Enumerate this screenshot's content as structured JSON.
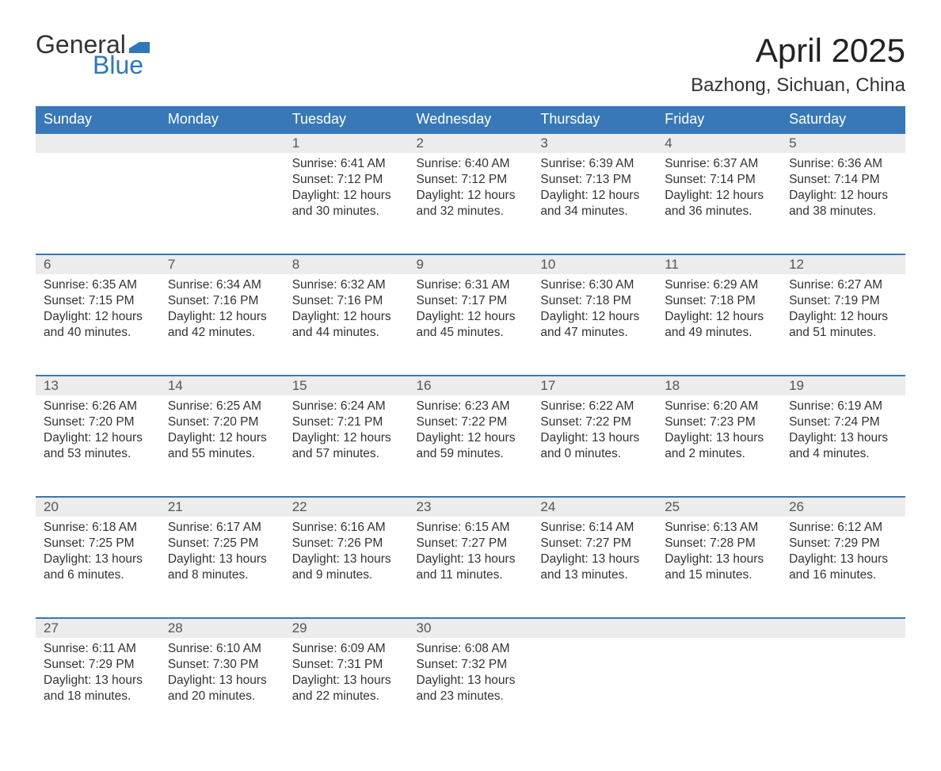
{
  "brand": {
    "part1": "General",
    "part2": "Blue",
    "flag_color": "#2f77bb"
  },
  "title": "April 2025",
  "location": "Bazhong, Sichuan, China",
  "colors": {
    "header_bg": "#3878b8",
    "header_text": "#ffffff",
    "daynum_bg": "#ececec",
    "rule": "#3878b8",
    "text": "#333333",
    "background": "#ffffff"
  },
  "weekdays": [
    "Sunday",
    "Monday",
    "Tuesday",
    "Wednesday",
    "Thursday",
    "Friday",
    "Saturday"
  ],
  "weeks": [
    [
      null,
      null,
      {
        "n": "1",
        "sr": "Sunrise: 6:41 AM",
        "ss": "Sunset: 7:12 PM",
        "d1": "Daylight: 12 hours",
        "d2": "and 30 minutes."
      },
      {
        "n": "2",
        "sr": "Sunrise: 6:40 AM",
        "ss": "Sunset: 7:12 PM",
        "d1": "Daylight: 12 hours",
        "d2": "and 32 minutes."
      },
      {
        "n": "3",
        "sr": "Sunrise: 6:39 AM",
        "ss": "Sunset: 7:13 PM",
        "d1": "Daylight: 12 hours",
        "d2": "and 34 minutes."
      },
      {
        "n": "4",
        "sr": "Sunrise: 6:37 AM",
        "ss": "Sunset: 7:14 PM",
        "d1": "Daylight: 12 hours",
        "d2": "and 36 minutes."
      },
      {
        "n": "5",
        "sr": "Sunrise: 6:36 AM",
        "ss": "Sunset: 7:14 PM",
        "d1": "Daylight: 12 hours",
        "d2": "and 38 minutes."
      }
    ],
    [
      {
        "n": "6",
        "sr": "Sunrise: 6:35 AM",
        "ss": "Sunset: 7:15 PM",
        "d1": "Daylight: 12 hours",
        "d2": "and 40 minutes."
      },
      {
        "n": "7",
        "sr": "Sunrise: 6:34 AM",
        "ss": "Sunset: 7:16 PM",
        "d1": "Daylight: 12 hours",
        "d2": "and 42 minutes."
      },
      {
        "n": "8",
        "sr": "Sunrise: 6:32 AM",
        "ss": "Sunset: 7:16 PM",
        "d1": "Daylight: 12 hours",
        "d2": "and 44 minutes."
      },
      {
        "n": "9",
        "sr": "Sunrise: 6:31 AM",
        "ss": "Sunset: 7:17 PM",
        "d1": "Daylight: 12 hours",
        "d2": "and 45 minutes."
      },
      {
        "n": "10",
        "sr": "Sunrise: 6:30 AM",
        "ss": "Sunset: 7:18 PM",
        "d1": "Daylight: 12 hours",
        "d2": "and 47 minutes."
      },
      {
        "n": "11",
        "sr": "Sunrise: 6:29 AM",
        "ss": "Sunset: 7:18 PM",
        "d1": "Daylight: 12 hours",
        "d2": "and 49 minutes."
      },
      {
        "n": "12",
        "sr": "Sunrise: 6:27 AM",
        "ss": "Sunset: 7:19 PM",
        "d1": "Daylight: 12 hours",
        "d2": "and 51 minutes."
      }
    ],
    [
      {
        "n": "13",
        "sr": "Sunrise: 6:26 AM",
        "ss": "Sunset: 7:20 PM",
        "d1": "Daylight: 12 hours",
        "d2": "and 53 minutes."
      },
      {
        "n": "14",
        "sr": "Sunrise: 6:25 AM",
        "ss": "Sunset: 7:20 PM",
        "d1": "Daylight: 12 hours",
        "d2": "and 55 minutes."
      },
      {
        "n": "15",
        "sr": "Sunrise: 6:24 AM",
        "ss": "Sunset: 7:21 PM",
        "d1": "Daylight: 12 hours",
        "d2": "and 57 minutes."
      },
      {
        "n": "16",
        "sr": "Sunrise: 6:23 AM",
        "ss": "Sunset: 7:22 PM",
        "d1": "Daylight: 12 hours",
        "d2": "and 59 minutes."
      },
      {
        "n": "17",
        "sr": "Sunrise: 6:22 AM",
        "ss": "Sunset: 7:22 PM",
        "d1": "Daylight: 13 hours",
        "d2": "and 0 minutes."
      },
      {
        "n": "18",
        "sr": "Sunrise: 6:20 AM",
        "ss": "Sunset: 7:23 PM",
        "d1": "Daylight: 13 hours",
        "d2": "and 2 minutes."
      },
      {
        "n": "19",
        "sr": "Sunrise: 6:19 AM",
        "ss": "Sunset: 7:24 PM",
        "d1": "Daylight: 13 hours",
        "d2": "and 4 minutes."
      }
    ],
    [
      {
        "n": "20",
        "sr": "Sunrise: 6:18 AM",
        "ss": "Sunset: 7:25 PM",
        "d1": "Daylight: 13 hours",
        "d2": "and 6 minutes."
      },
      {
        "n": "21",
        "sr": "Sunrise: 6:17 AM",
        "ss": "Sunset: 7:25 PM",
        "d1": "Daylight: 13 hours",
        "d2": "and 8 minutes."
      },
      {
        "n": "22",
        "sr": "Sunrise: 6:16 AM",
        "ss": "Sunset: 7:26 PM",
        "d1": "Daylight: 13 hours",
        "d2": "and 9 minutes."
      },
      {
        "n": "23",
        "sr": "Sunrise: 6:15 AM",
        "ss": "Sunset: 7:27 PM",
        "d1": "Daylight: 13 hours",
        "d2": "and 11 minutes."
      },
      {
        "n": "24",
        "sr": "Sunrise: 6:14 AM",
        "ss": "Sunset: 7:27 PM",
        "d1": "Daylight: 13 hours",
        "d2": "and 13 minutes."
      },
      {
        "n": "25",
        "sr": "Sunrise: 6:13 AM",
        "ss": "Sunset: 7:28 PM",
        "d1": "Daylight: 13 hours",
        "d2": "and 15 minutes."
      },
      {
        "n": "26",
        "sr": "Sunrise: 6:12 AM",
        "ss": "Sunset: 7:29 PM",
        "d1": "Daylight: 13 hours",
        "d2": "and 16 minutes."
      }
    ],
    [
      {
        "n": "27",
        "sr": "Sunrise: 6:11 AM",
        "ss": "Sunset: 7:29 PM",
        "d1": "Daylight: 13 hours",
        "d2": "and 18 minutes."
      },
      {
        "n": "28",
        "sr": "Sunrise: 6:10 AM",
        "ss": "Sunset: 7:30 PM",
        "d1": "Daylight: 13 hours",
        "d2": "and 20 minutes."
      },
      {
        "n": "29",
        "sr": "Sunrise: 6:09 AM",
        "ss": "Sunset: 7:31 PM",
        "d1": "Daylight: 13 hours",
        "d2": "and 22 minutes."
      },
      {
        "n": "30",
        "sr": "Sunrise: 6:08 AM",
        "ss": "Sunset: 7:32 PM",
        "d1": "Daylight: 13 hours",
        "d2": "and 23 minutes."
      },
      null,
      null,
      null
    ]
  ]
}
